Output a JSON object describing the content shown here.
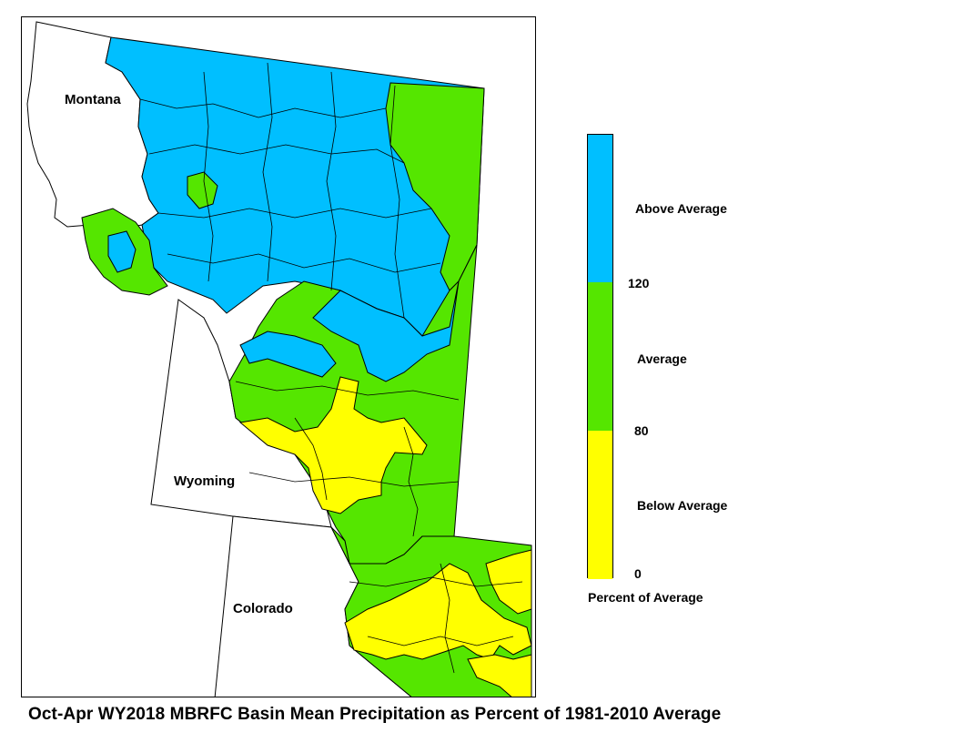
{
  "map": {
    "states": [
      {
        "name": "Montana"
      },
      {
        "name": "Wyoming"
      },
      {
        "name": "Colorado"
      }
    ]
  },
  "legend": {
    "title": "Percent of Average",
    "categories": [
      {
        "label": "Above Average",
        "range": [
          120,
          null
        ],
        "color": "#00bfff"
      },
      {
        "label": "Average",
        "range": [
          80,
          120
        ],
        "color": "#55e600"
      },
      {
        "label": "Below Average",
        "range": [
          0,
          80
        ],
        "color": "#ffff00"
      }
    ],
    "breaks": [
      "120",
      "80",
      "0"
    ]
  },
  "caption": "Oct-Apr WY2018 MBRFC Basin Mean Precipitation as Percent of 1981-2010 Average",
  "colors": {
    "above": "#00bfff",
    "average": "#55e600",
    "below": "#ffff00",
    "outline": "#000000"
  }
}
